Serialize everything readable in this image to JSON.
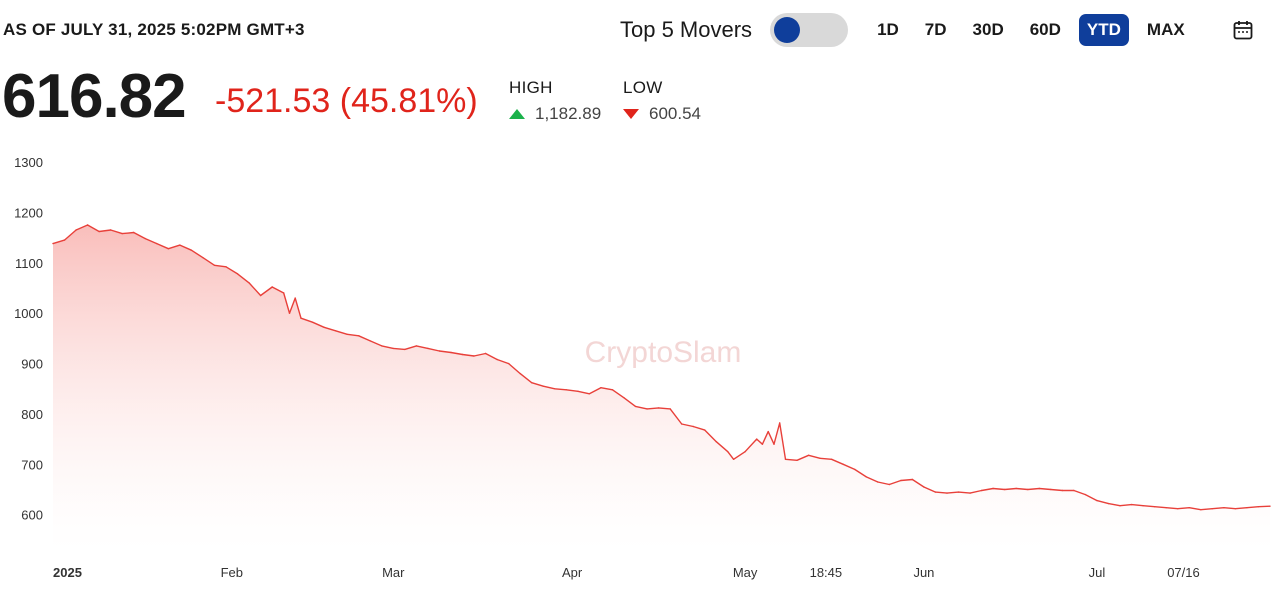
{
  "header": {
    "as_of": "AS OF JULY 31, 2025 5:02PM GMT+3",
    "top_movers_label": "Top 5 Movers",
    "ranges": [
      "1D",
      "7D",
      "30D",
      "60D",
      "YTD",
      "MAX"
    ],
    "active_range": "YTD"
  },
  "stats": {
    "price": "616.82",
    "change": "-521.53 (45.81%)",
    "high_label": "HIGH",
    "high_value": "1,182.89",
    "low_label": "LOW",
    "low_value": "600.54"
  },
  "colors": {
    "accent": "#0f3e9b",
    "negative": "#e0241b",
    "positive": "#1bb24b",
    "line": "#e8403a"
  },
  "chart_data": {
    "type": "area",
    "watermark": "CryptoSlam",
    "ylim": [
      530,
      1300
    ],
    "yticks": [
      600,
      700,
      800,
      900,
      1000,
      1100,
      1200,
      1300
    ],
    "xticks": [
      {
        "label": "2025",
        "date": "2025-01-01",
        "bold": true
      },
      {
        "label": "Feb",
        "date": "2025-02-01"
      },
      {
        "label": "Mar",
        "date": "2025-03-01"
      },
      {
        "label": "Apr",
        "date": "2025-04-01"
      },
      {
        "label": "May",
        "date": "2025-05-01"
      },
      {
        "label": "18:45",
        "date": "2025-05-15"
      },
      {
        "label": "Jun",
        "date": "2025-06-01"
      },
      {
        "label": "Jul",
        "date": "2025-07-01"
      },
      {
        "label": "07/16",
        "date": "2025-07-16"
      }
    ],
    "xrange": [
      "2025-01-01",
      "2025-07-31"
    ],
    "series": [
      {
        "points": [
          [
            "2025-01-01",
            1138
          ],
          [
            "2025-01-03",
            1145
          ],
          [
            "2025-01-05",
            1165
          ],
          [
            "2025-01-07",
            1175
          ],
          [
            "2025-01-09",
            1162
          ],
          [
            "2025-01-11",
            1165
          ],
          [
            "2025-01-13",
            1158
          ],
          [
            "2025-01-15",
            1160
          ],
          [
            "2025-01-17",
            1148
          ],
          [
            "2025-01-19",
            1138
          ],
          [
            "2025-01-21",
            1128
          ],
          [
            "2025-01-23",
            1135
          ],
          [
            "2025-01-25",
            1125
          ],
          [
            "2025-01-27",
            1110
          ],
          [
            "2025-01-29",
            1095
          ],
          [
            "2025-01-31",
            1092
          ],
          [
            "2025-02-02",
            1078
          ],
          [
            "2025-02-04",
            1060
          ],
          [
            "2025-02-06",
            1035
          ],
          [
            "2025-02-08",
            1052
          ],
          [
            "2025-02-10",
            1040
          ],
          [
            "2025-02-11",
            1000
          ],
          [
            "2025-02-12",
            1030
          ],
          [
            "2025-02-13",
            990
          ],
          [
            "2025-02-15",
            982
          ],
          [
            "2025-02-17",
            972
          ],
          [
            "2025-02-19",
            965
          ],
          [
            "2025-02-21",
            958
          ],
          [
            "2025-02-23",
            955
          ],
          [
            "2025-02-25",
            945
          ],
          [
            "2025-02-27",
            935
          ],
          [
            "2025-03-01",
            930
          ],
          [
            "2025-03-03",
            928
          ],
          [
            "2025-03-05",
            935
          ],
          [
            "2025-03-07",
            930
          ],
          [
            "2025-03-09",
            925
          ],
          [
            "2025-03-11",
            922
          ],
          [
            "2025-03-13",
            918
          ],
          [
            "2025-03-15",
            915
          ],
          [
            "2025-03-17",
            920
          ],
          [
            "2025-03-19",
            908
          ],
          [
            "2025-03-21",
            900
          ],
          [
            "2025-03-23",
            880
          ],
          [
            "2025-03-25",
            862
          ],
          [
            "2025-03-27",
            855
          ],
          [
            "2025-03-29",
            850
          ],
          [
            "2025-03-31",
            848
          ],
          [
            "2025-04-02",
            845
          ],
          [
            "2025-04-04",
            840
          ],
          [
            "2025-04-06",
            852
          ],
          [
            "2025-04-08",
            848
          ],
          [
            "2025-04-10",
            832
          ],
          [
            "2025-04-12",
            815
          ],
          [
            "2025-04-14",
            810
          ],
          [
            "2025-04-16",
            812
          ],
          [
            "2025-04-18",
            810
          ],
          [
            "2025-04-20",
            780
          ],
          [
            "2025-04-22",
            775
          ],
          [
            "2025-04-24",
            768
          ],
          [
            "2025-04-26",
            745
          ],
          [
            "2025-04-28",
            725
          ],
          [
            "2025-04-29",
            710
          ],
          [
            "2025-05-01",
            725
          ],
          [
            "2025-05-03",
            750
          ],
          [
            "2025-05-04",
            740
          ],
          [
            "2025-05-05",
            765
          ],
          [
            "2025-05-06",
            740
          ],
          [
            "2025-05-07",
            782
          ],
          [
            "2025-05-08",
            710
          ],
          [
            "2025-05-10",
            708
          ],
          [
            "2025-05-12",
            718
          ],
          [
            "2025-05-14",
            712
          ],
          [
            "2025-05-16",
            710
          ],
          [
            "2025-05-18",
            700
          ],
          [
            "2025-05-20",
            690
          ],
          [
            "2025-05-22",
            675
          ],
          [
            "2025-05-24",
            665
          ],
          [
            "2025-05-26",
            660
          ],
          [
            "2025-05-28",
            668
          ],
          [
            "2025-05-30",
            670
          ],
          [
            "2025-06-01",
            655
          ],
          [
            "2025-06-03",
            645
          ],
          [
            "2025-06-05",
            643
          ],
          [
            "2025-06-07",
            645
          ],
          [
            "2025-06-09",
            643
          ],
          [
            "2025-06-11",
            648
          ],
          [
            "2025-06-13",
            652
          ],
          [
            "2025-06-15",
            650
          ],
          [
            "2025-06-17",
            652
          ],
          [
            "2025-06-19",
            650
          ],
          [
            "2025-06-21",
            652
          ],
          [
            "2025-06-23",
            650
          ],
          [
            "2025-06-25",
            648
          ],
          [
            "2025-06-27",
            648
          ],
          [
            "2025-06-29",
            640
          ],
          [
            "2025-07-01",
            628
          ],
          [
            "2025-07-03",
            622
          ],
          [
            "2025-07-05",
            618
          ],
          [
            "2025-07-07",
            620
          ],
          [
            "2025-07-09",
            618
          ],
          [
            "2025-07-11",
            616
          ],
          [
            "2025-07-13",
            614
          ],
          [
            "2025-07-15",
            612
          ],
          [
            "2025-07-17",
            614
          ],
          [
            "2025-07-19",
            610
          ],
          [
            "2025-07-21",
            612
          ],
          [
            "2025-07-23",
            614
          ],
          [
            "2025-07-25",
            612
          ],
          [
            "2025-07-27",
            614
          ],
          [
            "2025-07-29",
            616
          ],
          [
            "2025-07-31",
            617
          ]
        ]
      }
    ]
  }
}
